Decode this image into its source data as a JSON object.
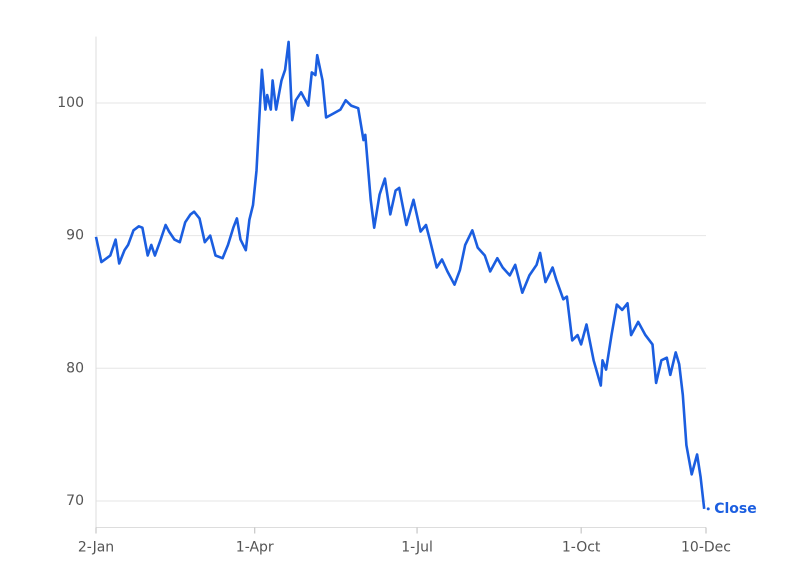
{
  "chart_data": {
    "type": "line",
    "x": [
      "2-Jan",
      "5-Jan",
      "8-Jan",
      "10-Jan",
      "13-Jan",
      "15-Jan",
      "18-Jan",
      "20-Jan",
      "23-Jan",
      "26-Jan",
      "28-Jan",
      "31-Jan",
      "2-Feb",
      "4-Feb",
      "7-Feb",
      "10-Feb",
      "12-Feb",
      "15-Feb",
      "18-Feb",
      "21-Feb",
      "24-Feb",
      "26-Feb",
      "1-Mar",
      "4-Mar",
      "7-Mar",
      "10-Mar",
      "14-Mar",
      "17-Mar",
      "20-Mar",
      "22-Mar",
      "24-Mar",
      "27-Mar",
      "29-Mar",
      "31-Mar",
      "2-Apr",
      "5-Apr",
      "7-Apr",
      "8-Apr",
      "10-Apr",
      "11-Apr",
      "13-Apr",
      "16-Apr",
      "18-Apr",
      "20-Apr",
      "22-Apr",
      "24-Apr",
      "27-Apr",
      "1-May",
      "3-May",
      "5-May",
      "6-May",
      "9-May",
      "11-May",
      "15-May",
      "19-May",
      "22-May",
      "25-May",
      "29-May",
      "1-Jun",
      "2-Jun",
      "5-Jun",
      "7-Jun",
      "10-Jun",
      "13-Jun",
      "16-Jun",
      "19-Jun",
      "21-Jun",
      "25-Jun",
      "29-Jun",
      "3-Jul",
      "6-Jul",
      "8-Jul",
      "12-Jul",
      "15-Jul",
      "18-Jul",
      "22-Jul",
      "25-Jul",
      "28-Jul",
      "1-Aug",
      "4-Aug",
      "8-Aug",
      "11-Aug",
      "15-Aug",
      "18-Aug",
      "22-Aug",
      "25-Aug",
      "29-Aug",
      "2-Sep",
      "6-Sep",
      "8-Sep",
      "11-Sep",
      "15-Sep",
      "17-Sep",
      "21-Sep",
      "23-Sep",
      "26-Sep",
      "29-Sep",
      "1-Oct",
      "4-Oct",
      "8-Oct",
      "12-Oct",
      "13-Oct",
      "15-Oct",
      "18-Oct",
      "21-Oct",
      "24-Oct",
      "27-Oct",
      "29-Oct",
      "2-Nov",
      "6-Nov",
      "10-Nov",
      "12-Nov",
      "15-Nov",
      "18-Nov",
      "20-Nov",
      "23-Nov",
      "25-Nov",
      "27-Nov",
      "29-Nov",
      "2-Dec",
      "5-Dec",
      "7-Dec",
      "9-Dec"
    ],
    "series": [
      {
        "name": "Close",
        "color": "#1b5ee0",
        "values": [
          89.9,
          88.0,
          88.3,
          88.5,
          89.7,
          87.9,
          88.9,
          89.3,
          90.4,
          90.7,
          90.6,
          88.5,
          89.3,
          88.5,
          89.6,
          90.8,
          90.3,
          89.7,
          89.5,
          91.0,
          91.6,
          91.8,
          91.3,
          89.5,
          90.0,
          88.5,
          88.3,
          89.3,
          90.6,
          91.3,
          89.7,
          88.9,
          91.2,
          92.3,
          94.9,
          102.5,
          99.5,
          100.6,
          99.5,
          101.7,
          99.5,
          101.7,
          102.5,
          104.6,
          98.7,
          100.2,
          100.8,
          99.8,
          102.3,
          102.1,
          103.6,
          101.7,
          98.9,
          99.2,
          99.5,
          100.2,
          99.8,
          99.6,
          97.2,
          97.6,
          92.7,
          90.6,
          93.1,
          94.3,
          91.6,
          93.4,
          93.6,
          90.8,
          92.7,
          90.3,
          90.8,
          89.8,
          87.6,
          88.2,
          87.3,
          86.3,
          87.4,
          89.3,
          90.4,
          89.1,
          88.5,
          87.3,
          88.3,
          87.6,
          87.0,
          87.8,
          85.7,
          87.0,
          87.8,
          88.7,
          86.5,
          87.6,
          86.7,
          85.2,
          85.4,
          82.1,
          82.5,
          81.8,
          83.3,
          80.6,
          78.7,
          80.6,
          79.9,
          82.5,
          84.8,
          84.4,
          84.9,
          82.5,
          83.5,
          82.5,
          81.8,
          78.9,
          80.6,
          80.8,
          79.5,
          81.2,
          80.3,
          78.0,
          74.2,
          72.0,
          73.5,
          71.8,
          69.4
        ]
      }
    ],
    "xlim": [
      "2-Jan",
      "10-Dec"
    ],
    "xticks": [
      "2-Jan",
      "1-Apr",
      "1-Jul",
      "1-Oct",
      "10-Dec"
    ],
    "ylim": [
      68,
      105
    ],
    "yticks": [
      70,
      80,
      90,
      100
    ],
    "grid": true
  }
}
